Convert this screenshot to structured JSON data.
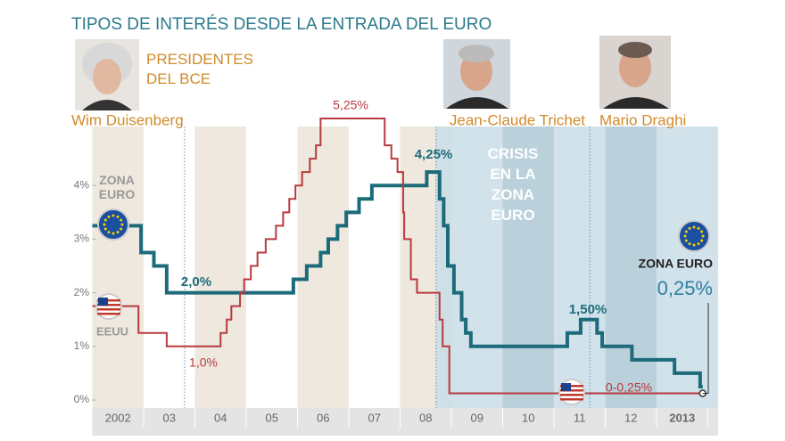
{
  "chart_data": {
    "type": "step",
    "title": "TIPOS DE INTERÉS DESDE LA ENTRADA DEL EURO",
    "subtitle": [
      "PRESIDENTES",
      "DEL BCE"
    ],
    "presidents": [
      "Wim Duisenberg",
      "Jean-Claude Trichet",
      "Mario Draghi"
    ],
    "president_changes": [
      2003.8,
      2011.7
    ],
    "crisis": {
      "label": [
        "CRISIS",
        "EN LA",
        "ZONA",
        "EURO"
      ],
      "range": [
        2008.7,
        2014.2
      ]
    },
    "xlim": [
      2002,
      2014.2
    ],
    "xticks": [
      {
        "value": 2002.5,
        "label": "2002"
      },
      {
        "value": 2003.5,
        "label": "03"
      },
      {
        "value": 2004.5,
        "label": "04"
      },
      {
        "value": 2005.5,
        "label": "05"
      },
      {
        "value": 2006.5,
        "label": "06"
      },
      {
        "value": 2007.5,
        "label": "07"
      },
      {
        "value": 2008.5,
        "label": "08"
      },
      {
        "value": 2009.5,
        "label": "09"
      },
      {
        "value": 2010.5,
        "label": "10"
      },
      {
        "value": 2011.5,
        "label": "11"
      },
      {
        "value": 2012.5,
        "label": "12"
      },
      {
        "value": 2013.5,
        "label": "2013"
      }
    ],
    "ylim": [
      0,
      5.1
    ],
    "yticks": [
      {
        "value": 0,
        "label": "0%"
      },
      {
        "value": 1,
        "label": "1%"
      },
      {
        "value": 2,
        "label": "2%"
      },
      {
        "value": 3,
        "label": "3%"
      },
      {
        "value": 4,
        "label": "4%"
      }
    ],
    "series": [
      {
        "name": "ZONA EURO",
        "color": "#1d6b7a",
        "x": [
          2002,
          2002.95,
          2003.2,
          2003.45,
          2005.92,
          2006.18,
          2006.45,
          2006.6,
          2006.78,
          2006.95,
          2007.2,
          2007.45,
          2008.52,
          2008.77,
          2008.85,
          2008.93,
          2009.05,
          2009.2,
          2009.28,
          2009.38,
          2011.26,
          2011.52,
          2011.84,
          2011.94,
          2012.52,
          2013.35,
          2013.85,
          2013.9
        ],
        "values": [
          3.25,
          2.75,
          2.5,
          2.0,
          2.25,
          2.5,
          2.75,
          3.0,
          3.25,
          3.5,
          3.75,
          4.0,
          4.25,
          3.75,
          3.25,
          2.5,
          2.0,
          1.5,
          1.25,
          1.0,
          1.25,
          1.5,
          1.25,
          1.0,
          0.75,
          0.5,
          0.25,
          0.25
        ]
      },
      {
        "name": "EEUU",
        "color": "#b83a3f",
        "x": [
          2002,
          2002.9,
          2003.45,
          2004.5,
          2004.62,
          2004.71,
          2004.88,
          2004.96,
          2005.09,
          2005.22,
          2005.38,
          2005.58,
          2005.72,
          2005.84,
          2005.96,
          2006.09,
          2006.24,
          2006.36,
          2006.45,
          2007.7,
          2007.83,
          2007.95,
          2008.06,
          2008.08,
          2008.21,
          2008.33,
          2008.77,
          2008.83,
          2008.96,
          2013.9
        ],
        "values": [
          1.75,
          1.25,
          1.0,
          1.25,
          1.5,
          1.75,
          2.0,
          2.25,
          2.5,
          2.75,
          3.0,
          3.25,
          3.5,
          3.75,
          4.0,
          4.25,
          4.5,
          4.75,
          5.25,
          4.75,
          4.5,
          4.25,
          3.5,
          3.0,
          2.25,
          2.0,
          1.5,
          1.0,
          0.125,
          0.125
        ]
      }
    ],
    "annotations": [
      "2,0%",
      "1,0%",
      "5,25%",
      "4,25%",
      "1,50%",
      "0-0,25%",
      "ZONA EURO",
      "0,25%"
    ]
  }
}
